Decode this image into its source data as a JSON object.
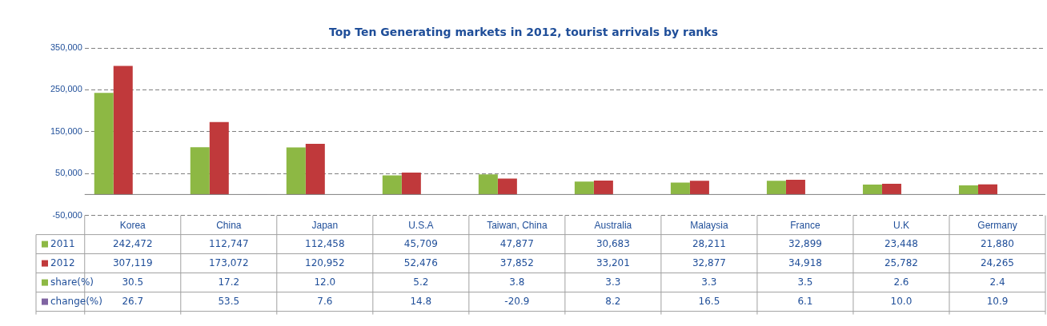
{
  "chart_data": {
    "type": "bar",
    "title": "Top Ten Generating markets in 2012, tourist arrivals by ranks",
    "categories": [
      "Korea",
      "China",
      "Japan",
      "U.S.A",
      "Taiwan, China",
      "Australia",
      "Malaysia",
      "France",
      "U.K",
      "Germany"
    ],
    "series": [
      {
        "name": "2011",
        "color": "#8db844",
        "values": [
          242472,
          112747,
          112458,
          45709,
          47877,
          30683,
          28211,
          32899,
          23448,
          21880
        ],
        "value_labels": [
          "242,472",
          "112,747",
          "112,458",
          "45,709",
          "47,877",
          "30,683",
          "28,211",
          "32,899",
          "23,448",
          "21,880"
        ]
      },
      {
        "name": "2012",
        "color": "#c0393b",
        "values": [
          307119,
          173072,
          120952,
          52476,
          37852,
          33201,
          32877,
          34918,
          25782,
          24265
        ],
        "value_labels": [
          "307,119",
          "173,072",
          "120,952",
          "52,476",
          "37,852",
          "33,201",
          "32,877",
          "34,918",
          "25,782",
          "24,265"
        ]
      },
      {
        "name": "share(%)",
        "color": "#8db844",
        "values": [
          30.5,
          17.2,
          12.0,
          5.2,
          3.8,
          3.3,
          3.3,
          3.5,
          2.6,
          2.4
        ],
        "value_labels": [
          "30.5",
          "17.2",
          "12.0",
          "5.2",
          "3.8",
          "3.3",
          "3.3",
          "3.5",
          "2.6",
          "2.4"
        ]
      },
      {
        "name": "change(%)",
        "color": "#8064a2",
        "values": [
          26.7,
          53.5,
          7.6,
          14.8,
          -20.9,
          8.2,
          16.5,
          6.1,
          10.0,
          10.9
        ],
        "value_labels": [
          "26.7",
          "53.5",
          "7.6",
          "14.8",
          "-20.9",
          "8.2",
          "16.5",
          "6.1",
          "10.0",
          "10.9"
        ]
      }
    ],
    "ylim": [
      -50000,
      350000
    ],
    "yticks": [
      {
        "value": -50000,
        "label": "-50,000"
      },
      {
        "value": 50000,
        "label": "50,000"
      },
      {
        "value": 150000,
        "label": "150,000"
      },
      {
        "value": 250000,
        "label": "250,000"
      },
      {
        "value": 350000,
        "label": "350,000"
      }
    ],
    "grid": "y",
    "legend": "bottom"
  }
}
